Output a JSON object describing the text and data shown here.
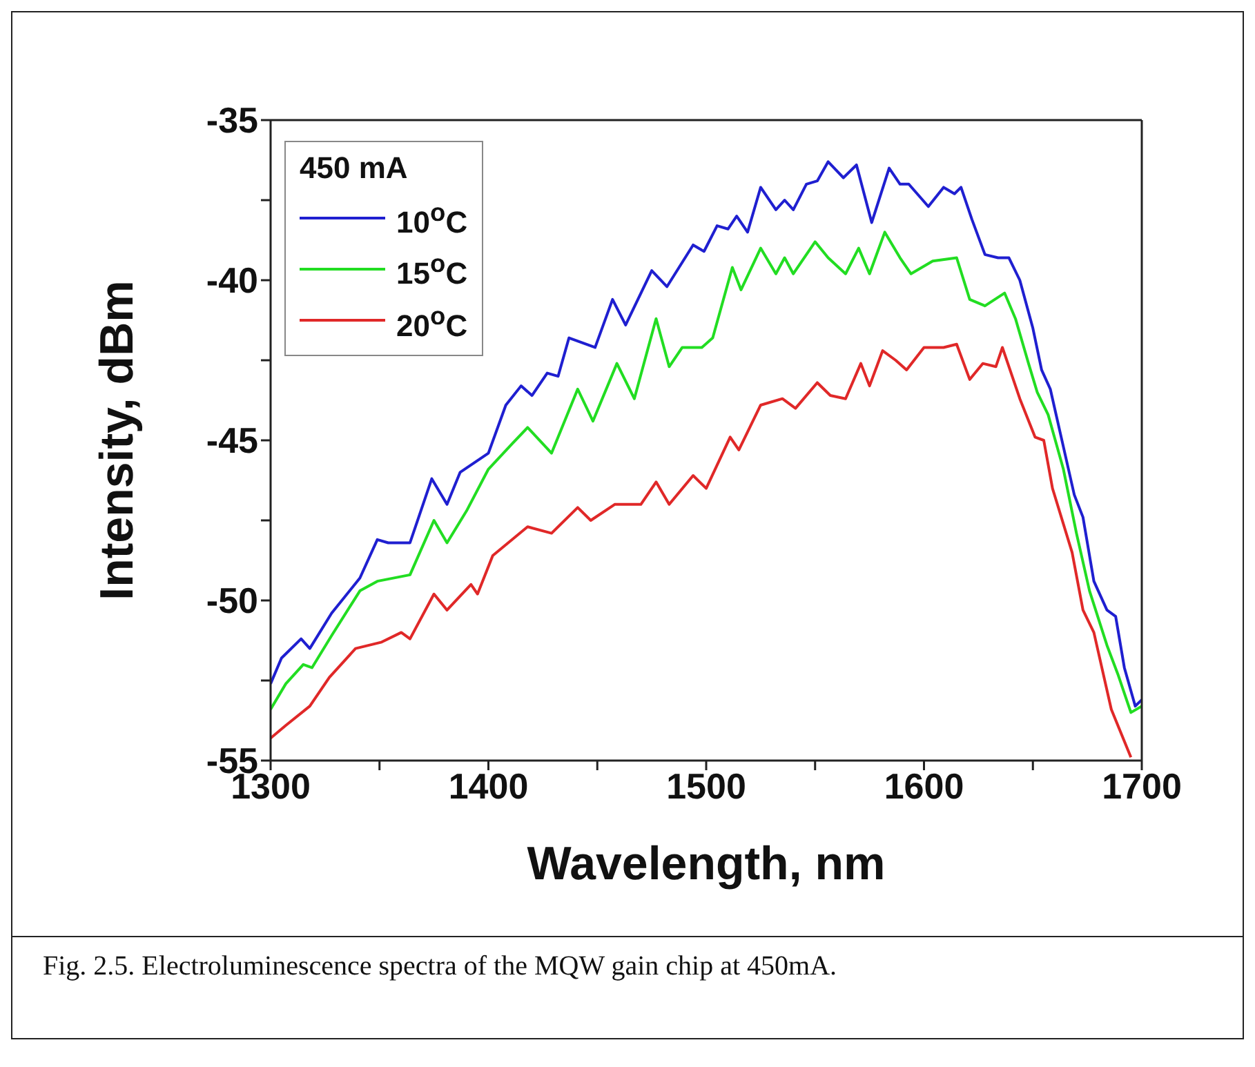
{
  "chart_data": {
    "type": "line",
    "xlabel": "Wavelength, nm",
    "ylabel": "Intensity, dBm",
    "legend_title": "450 mA",
    "legend": "top left",
    "xlim": [
      1300,
      1700
    ],
    "ylim": [
      -55,
      -35
    ],
    "xticks": [
      1300,
      {
        "value": 1350,
        "label": null
      },
      1400,
      {
        "value": 1450,
        "label": null
      },
      1500,
      {
        "value": 1550,
        "label": null
      },
      1600,
      {
        "value": 1650,
        "label": null
      },
      1700
    ],
    "yticks": [
      -55,
      {
        "value": -52.5,
        "label": null
      },
      -50,
      {
        "value": -47.5,
        "label": null
      },
      -45,
      {
        "value": -42.5,
        "label": null
      },
      -40,
      {
        "value": -37.5,
        "label": null
      },
      -35
    ],
    "annotations": [
      "Fig. 2.5. Electroluminescence spectra of the MQW gain chip at 450mA."
    ],
    "series": [
      {
        "name": "10$^{o}$C",
        "color": "#1f1fd0",
        "x": [
          1300,
          1305,
          1314,
          1318,
          1328,
          1341,
          1349,
          1354,
          1364,
          1374,
          1381,
          1387,
          1400,
          1408,
          1415,
          1420,
          1427,
          1432,
          1437,
          1449,
          1457,
          1463,
          1475,
          1482,
          1494,
          1499,
          1505,
          1510,
          1514,
          1519,
          1525,
          1532,
          1536,
          1540,
          1546,
          1551,
          1556,
          1563,
          1569,
          1576,
          1584,
          1589,
          1593,
          1602,
          1609,
          1614,
          1617,
          1622,
          1628,
          1634,
          1639,
          1644,
          1650,
          1654,
          1658,
          1663,
          1669,
          1673,
          1678,
          1684,
          1688,
          1692,
          1697,
          1700
        ],
        "values": [
          -52.6,
          -51.8,
          -51.2,
          -51.5,
          -50.4,
          -49.3,
          -48.1,
          -48.2,
          -48.2,
          -46.2,
          -47.0,
          -46.0,
          -45.4,
          -43.9,
          -43.3,
          -43.6,
          -42.9,
          -43.0,
          -41.8,
          -42.1,
          -40.6,
          -41.4,
          -39.7,
          -40.2,
          -38.9,
          -39.1,
          -38.3,
          -38.4,
          -38.0,
          -38.5,
          -37.1,
          -37.8,
          -37.5,
          -37.8,
          -37.0,
          -36.9,
          -36.3,
          -36.8,
          -36.4,
          -38.2,
          -36.5,
          -37.0,
          -37.0,
          -37.7,
          -37.1,
          -37.3,
          -37.1,
          -38.1,
          -39.2,
          -39.3,
          -39.3,
          -40.0,
          -41.5,
          -42.8,
          -43.4,
          -44.9,
          -46.7,
          -47.4,
          -49.4,
          -50.3,
          -50.5,
          -52.1,
          -53.3,
          -53.1
        ]
      },
      {
        "name": "15$^{o}$C",
        "color": "#22dd22",
        "x": [
          1300,
          1307,
          1315,
          1319,
          1328,
          1341,
          1349,
          1364,
          1375,
          1381,
          1390,
          1400,
          1411,
          1418,
          1429,
          1441,
          1448,
          1459,
          1467,
          1477,
          1483,
          1489,
          1498,
          1503,
          1512,
          1516,
          1525,
          1532,
          1536,
          1540,
          1550,
          1556,
          1564,
          1570,
          1575,
          1582,
          1589,
          1594,
          1604,
          1615,
          1621,
          1628,
          1637,
          1642,
          1648,
          1652,
          1657,
          1664,
          1670,
          1676,
          1684,
          1689,
          1695,
          1700
        ],
        "values": [
          -53.4,
          -52.6,
          -52.0,
          -52.1,
          -51.1,
          -49.7,
          -49.4,
          -49.2,
          -47.5,
          -48.2,
          -47.2,
          -45.9,
          -45.1,
          -44.6,
          -45.4,
          -43.4,
          -44.4,
          -42.6,
          -43.7,
          -41.2,
          -42.7,
          -42.1,
          -42.1,
          -41.8,
          -39.6,
          -40.3,
          -39.0,
          -39.8,
          -39.3,
          -39.8,
          -38.8,
          -39.3,
          -39.8,
          -39.0,
          -39.8,
          -38.5,
          -39.3,
          -39.8,
          -39.4,
          -39.3,
          -40.6,
          -40.8,
          -40.4,
          -41.2,
          -42.6,
          -43.5,
          -44.2,
          -45.9,
          -47.9,
          -49.7,
          -51.4,
          -52.3,
          -53.5,
          -53.3
        ]
      },
      {
        "name": "20$^{o}$C",
        "color": "#e02828",
        "x": [
          1300,
          1307,
          1318,
          1327,
          1339,
          1351,
          1360,
          1364,
          1375,
          1381,
          1392,
          1395,
          1402,
          1418,
          1429,
          1441,
          1447,
          1458,
          1470,
          1477,
          1483,
          1494,
          1500,
          1511,
          1515,
          1525,
          1535,
          1541,
          1551,
          1557,
          1564,
          1571,
          1575,
          1581,
          1587,
          1592,
          1600,
          1609,
          1615,
          1621,
          1627,
          1633,
          1636,
          1644,
          1651,
          1655,
          1659,
          1668,
          1673,
          1678,
          1686,
          1695
        ],
        "values": [
          -54.3,
          -53.9,
          -53.3,
          -52.4,
          -51.5,
          -51.3,
          -51.0,
          -51.2,
          -49.8,
          -50.3,
          -49.5,
          -49.8,
          -48.6,
          -47.7,
          -47.9,
          -47.1,
          -47.5,
          -47.0,
          -47.0,
          -46.3,
          -47.0,
          -46.1,
          -46.5,
          -44.9,
          -45.3,
          -43.9,
          -43.7,
          -44.0,
          -43.2,
          -43.6,
          -43.7,
          -42.6,
          -43.3,
          -42.2,
          -42.5,
          -42.8,
          -42.1,
          -42.1,
          -42.0,
          -43.1,
          -42.6,
          -42.7,
          -42.1,
          -43.7,
          -44.9,
          -45.0,
          -46.5,
          -48.5,
          -50.3,
          -51.0,
          -53.4,
          -54.9
        ]
      }
    ]
  }
}
